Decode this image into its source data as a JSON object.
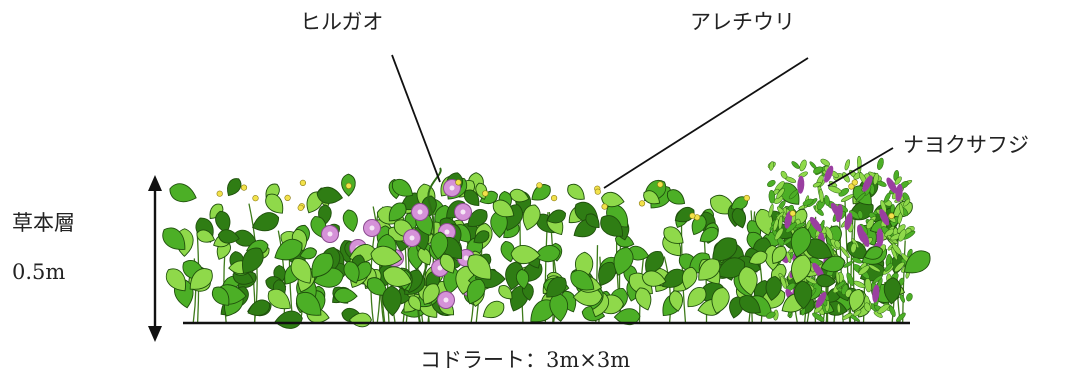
{
  "labels": {
    "hirugao": "ヒルガオ",
    "arechiuri": "アレチウリ",
    "nayoku": "ナヨクサフジ",
    "layer": "草本層",
    "height": "0.5m",
    "quadrat": "コドラート：3m×3m"
  },
  "colors": {
    "leaf_dark": "#2f7d14",
    "leaf_mid": "#4caf26",
    "leaf_light": "#8fd94a",
    "vetch": "#9a3fa0",
    "morning_glory": "#d592d8",
    "yellow_flower": "#f2e14a",
    "ground": "#111111"
  }
}
